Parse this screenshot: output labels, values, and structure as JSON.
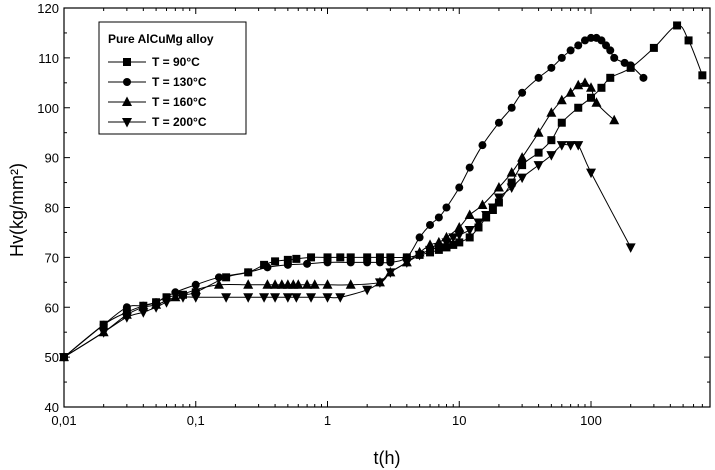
{
  "chart_data": {
    "type": "line",
    "title": "",
    "xlabel": "t(h)",
    "ylabel": "Hv(kg/mm²)",
    "x_scale": "log",
    "xlim": [
      0.01,
      800
    ],
    "ylim": [
      40,
      120
    ],
    "x_ticks": [
      0.01,
      0.1,
      1,
      10,
      100
    ],
    "x_tick_labels": [
      "0,01",
      "0,1",
      "1",
      "10",
      "100"
    ],
    "y_ticks": [
      40,
      50,
      60,
      70,
      80,
      90,
      100,
      110,
      120
    ],
    "y_tick_labels": [
      "40",
      "50",
      "60",
      "70",
      "80",
      "90",
      "100",
      "110",
      "120"
    ],
    "legend": {
      "title": "Pure AlCuMg alloy",
      "placement": "top-left"
    },
    "series": [
      {
        "name": "T = 90°C",
        "marker": "square",
        "x": [
          0.01,
          0.02,
          0.03,
          0.04,
          0.05,
          0.06,
          0.08,
          0.1,
          0.17,
          0.25,
          0.33,
          0.4,
          0.5,
          0.58,
          0.75,
          1,
          1.25,
          1.5,
          2,
          2.5,
          3,
          4,
          5,
          6,
          7,
          8,
          9,
          10,
          12,
          14,
          16,
          18,
          20,
          25,
          30,
          40,
          50,
          60,
          80,
          100,
          120,
          140,
          200,
          300,
          450,
          550,
          700
        ],
        "y": [
          50,
          56.5,
          59,
          60.3,
          61,
          62,
          62.5,
          63,
          66,
          67,
          68.5,
          69.2,
          69.5,
          69.7,
          70,
          70,
          70,
          70,
          70,
          70,
          70,
          70,
          70.5,
          71,
          71.5,
          72,
          72.5,
          73,
          74,
          76,
          78,
          79.5,
          81,
          85,
          88.5,
          91,
          93.5,
          97,
          100,
          102,
          104,
          106,
          108,
          112,
          116.5,
          113.5,
          106.5
        ]
      },
      {
        "name": "T = 130°C",
        "marker": "circle",
        "x": [
          0.01,
          0.02,
          0.03,
          0.04,
          0.05,
          0.07,
          0.1,
          0.15,
          0.25,
          0.35,
          0.5,
          0.7,
          1,
          1.5,
          2,
          2.5,
          3,
          4,
          5,
          6,
          7,
          8,
          10,
          12,
          15,
          20,
          25,
          30,
          40,
          50,
          60,
          70,
          80,
          90,
          100,
          110,
          120,
          130,
          140,
          150,
          180,
          200,
          250
        ],
        "y": [
          50,
          56.5,
          60,
          60.3,
          61,
          63,
          64.5,
          66,
          67,
          68,
          68.5,
          68.7,
          69,
          69,
          69,
          69,
          69,
          70,
          74,
          76.5,
          78,
          80,
          84,
          88,
          92.5,
          97,
          100,
          103,
          106,
          108,
          110,
          111.5,
          112.5,
          113.5,
          114,
          114,
          113.5,
          112.5,
          111.5,
          110,
          109,
          108.5,
          106
        ]
      },
      {
        "name": "T = 160°C",
        "marker": "triangle-up",
        "x": [
          0.01,
          0.02,
          0.03,
          0.04,
          0.05,
          0.07,
          0.1,
          0.15,
          0.25,
          0.35,
          0.4,
          0.45,
          0.5,
          0.55,
          0.6,
          0.7,
          0.8,
          1,
          1.5,
          2.5,
          3,
          4,
          5,
          6,
          7,
          8,
          10,
          12,
          15,
          20,
          25,
          30,
          40,
          50,
          60,
          70,
          80,
          90,
          100,
          110,
          150
        ],
        "y": [
          50,
          55,
          58.5,
          60,
          60.5,
          62,
          63.5,
          64.5,
          64.5,
          64.5,
          64.5,
          64.5,
          64.5,
          64.5,
          64.5,
          64.5,
          64.5,
          64.5,
          64.5,
          65,
          67,
          69,
          71,
          72.5,
          73,
          74,
          76,
          78.5,
          80.5,
          84,
          87,
          90,
          95,
          99,
          101.5,
          103,
          104.5,
          105,
          104,
          101,
          97.5
        ]
      },
      {
        "name": "T = 200°C",
        "marker": "triangle-down",
        "x": [
          0.01,
          0.02,
          0.03,
          0.04,
          0.05,
          0.06,
          0.08,
          0.1,
          0.17,
          0.25,
          0.33,
          0.4,
          0.5,
          0.58,
          0.75,
          1,
          1.25,
          2,
          2.5,
          3,
          4,
          5,
          6,
          7,
          8,
          9,
          10,
          12,
          14,
          16,
          18,
          20,
          25,
          30,
          40,
          50,
          60,
          70,
          80,
          100,
          200
        ],
        "y": [
          50,
          55,
          58,
          59,
          60,
          61,
          62,
          62,
          62,
          62,
          62,
          62,
          62,
          62,
          62,
          62,
          62,
          63.5,
          65,
          67,
          69,
          70.5,
          71.5,
          72,
          73,
          74,
          74.5,
          75.5,
          77,
          78.5,
          80,
          82,
          84,
          86,
          88.5,
          90.5,
          92.5,
          92.5,
          92.5,
          87,
          72
        ]
      }
    ]
  }
}
